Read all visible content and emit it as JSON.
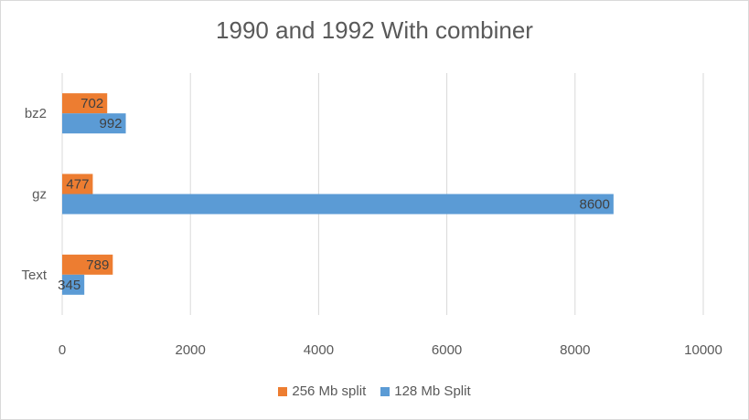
{
  "chart_data": {
    "type": "bar",
    "orientation": "horizontal",
    "title": "1990 and 1992 With combiner",
    "categories": [
      "bz2",
      "gz",
      "Text"
    ],
    "series": [
      {
        "name": "256 Mb split",
        "values": [
          702,
          477,
          789
        ],
        "color": "#ED7D31"
      },
      {
        "name": "128 Mb Split",
        "values": [
          992,
          8600,
          345
        ],
        "color": "#5B9BD5"
      }
    ],
    "xlim": [
      0,
      10000
    ],
    "xticks": [
      "0",
      "2000",
      "4000",
      "6000",
      "8000",
      "10000"
    ],
    "grid": true,
    "legend": "bottom",
    "data_labels": true
  }
}
